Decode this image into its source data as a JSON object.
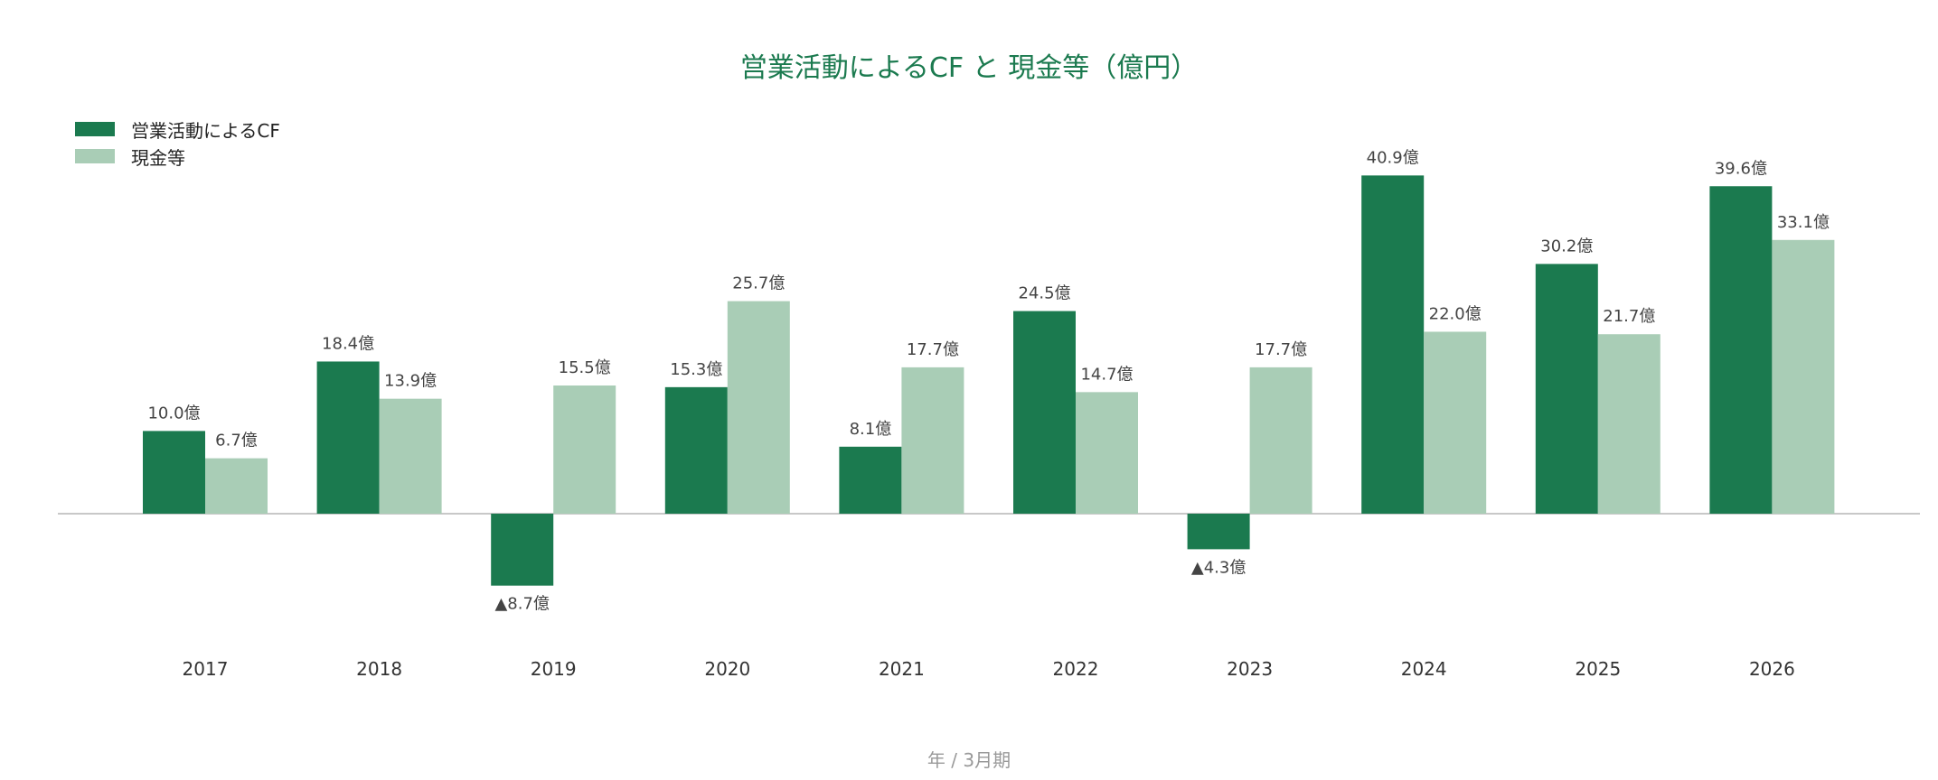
{
  "chart_data": {
    "type": "bar",
    "title": "営業活動によるCF と 現金等（億円）",
    "xlabel": "年 / 3月期",
    "ylabel": "",
    "categories": [
      "2017",
      "2018",
      "2019",
      "2020",
      "2021",
      "2022",
      "2023",
      "2024",
      "2025",
      "2026"
    ],
    "series": [
      {
        "name": "営業活動によるCF",
        "color": "#1b7a4f",
        "values": [
          10.0,
          18.4,
          -8.7,
          15.3,
          8.1,
          24.5,
          -4.3,
          40.9,
          30.2,
          39.6
        ],
        "labels": [
          "10.0億",
          "18.4億",
          "▲8.7億",
          "15.3億",
          "8.1億",
          "24.5億",
          "▲4.3億",
          "40.9億",
          "30.2億",
          "39.6億"
        ]
      },
      {
        "name": "現金等",
        "color": "#a9cdb6",
        "values": [
          6.7,
          13.9,
          15.5,
          25.7,
          17.7,
          14.7,
          17.7,
          22.0,
          21.7,
          33.1
        ],
        "labels": [
          "6.7億",
          "13.9億",
          "15.5億",
          "25.7億",
          "17.7億",
          "14.7億",
          "17.7億",
          "22.0億",
          "21.7億",
          "33.1億"
        ]
      }
    ],
    "ylim": [
      -17.5,
      44
    ],
    "grid": false,
    "legend_position": "top-left"
  }
}
